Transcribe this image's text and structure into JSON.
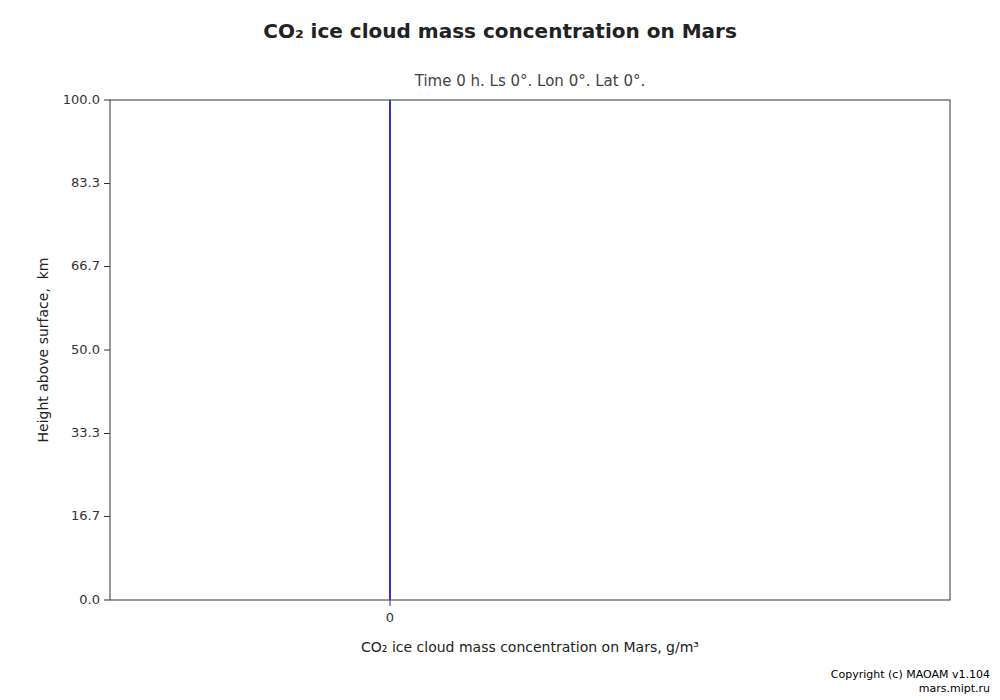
{
  "chart_data": {
    "type": "line",
    "title": "CO₂ ice cloud mass concentration on Mars",
    "subtitle": "Time 0 h. Ls 0°. Lon 0°. Lat 0°.",
    "x_label": "CO₂ ice cloud mass concentration on Mars, g/m³",
    "y_label": "Height above surface,  km",
    "annotations": [
      "Copyright (c) MAOAM v1.104",
      "mars.mipt.ru"
    ],
    "x": [
      0,
      0
    ],
    "values": [
      0,
      100
    ],
    "color": "#3333bb",
    "xlim": [
      -0.5,
      1.0
    ],
    "ylim": [
      0.0,
      100.0
    ],
    "xticks": [
      0
    ],
    "yticks": [
      {
        "value": 0,
        "label": "0.0"
      },
      16.7,
      33.3,
      {
        "value": 50,
        "label": "50.0"
      },
      66.7,
      83.3,
      {
        "value": 100,
        "label": "100.0"
      }
    ],
    "grid": false
  }
}
